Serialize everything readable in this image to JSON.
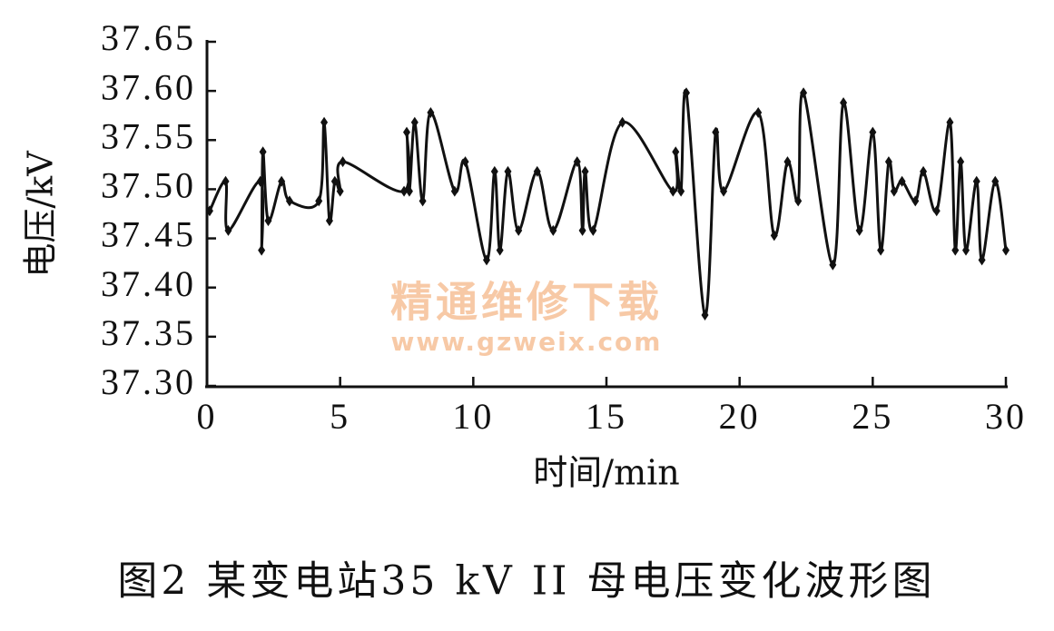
{
  "chart_data": {
    "type": "line",
    "title": "图2 某变电站35 kV II 母电压变化波形图",
    "xlabel": "时间/min",
    "ylabel": "电压/kV",
    "annotations": [
      "精通维修下载",
      "www.gzweix.com"
    ],
    "color": "#111111",
    "smooth": true,
    "xlim": [
      0,
      30
    ],
    "xticks": [
      0,
      5,
      10,
      15,
      20,
      25,
      30
    ],
    "ylim": [
      37.3,
      37.65
    ],
    "yticks": [
      {
        "value": 37.3,
        "label": "37.30"
      },
      37.35,
      {
        "value": 37.4,
        "label": "37.40"
      },
      37.45,
      {
        "value": 37.5,
        "label": "37.50"
      },
      37.55,
      {
        "value": 37.6,
        "label": "37.60"
      },
      37.65
    ],
    "x": [
      0.1,
      0.7,
      0.8,
      2.0,
      2.05,
      2.1,
      2.3,
      2.8,
      3.1,
      4.2,
      4.4,
      4.6,
      4.8,
      5.0,
      5.1,
      7.4,
      7.5,
      7.6,
      7.8,
      8.1,
      8.4,
      9.3,
      9.7,
      10.5,
      10.8,
      11.0,
      11.3,
      11.7,
      12.4,
      13.0,
      13.9,
      14.1,
      14.2,
      14.5,
      15.6,
      17.5,
      17.6,
      17.8,
      18.0,
      18.7,
      19.1,
      19.4,
      20.7,
      21.3,
      21.8,
      22.2,
      22.4,
      23.5,
      23.9,
      24.5,
      25.0,
      25.3,
      25.6,
      25.8,
      26.1,
      26.6,
      26.9,
      27.4,
      27.9,
      28.1,
      28.3,
      28.5,
      28.9,
      29.1,
      29.6,
      30.0
    ],
    "values": [
      37.478,
      37.508,
      37.458,
      37.508,
      37.438,
      37.538,
      37.468,
      37.508,
      37.488,
      37.488,
      37.568,
      37.468,
      37.508,
      37.498,
      37.528,
      37.498,
      37.558,
      37.498,
      37.568,
      37.488,
      37.578,
      37.498,
      37.528,
      37.428,
      37.518,
      37.438,
      37.518,
      37.458,
      37.518,
      37.458,
      37.528,
      37.458,
      37.518,
      37.458,
      37.568,
      37.498,
      37.538,
      37.498,
      37.598,
      37.372,
      37.558,
      37.498,
      37.578,
      37.453,
      37.528,
      37.488,
      37.598,
      37.423,
      37.588,
      37.458,
      37.558,
      37.438,
      37.528,
      37.498,
      37.508,
      37.488,
      37.518,
      37.478,
      37.568,
      37.438,
      37.528,
      37.438,
      37.508,
      37.428,
      37.508,
      37.438
    ]
  }
}
